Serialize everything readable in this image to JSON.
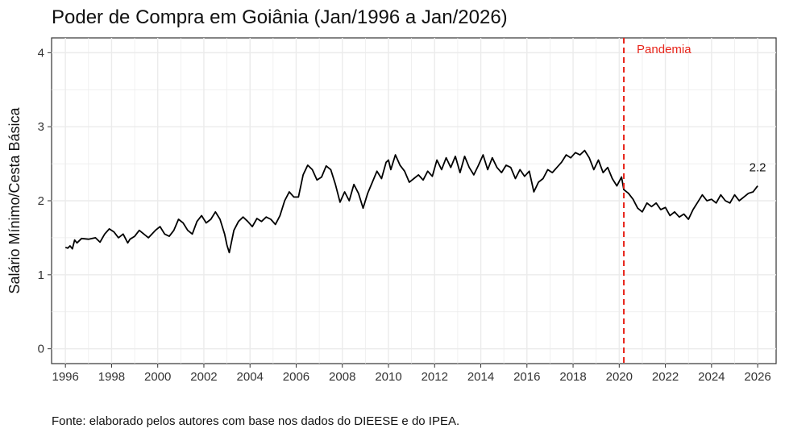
{
  "chart_data": {
    "type": "line",
    "title": "Poder de Compra em Goiânia (Jan/1996 a Jan/2026)",
    "xlabel": "",
    "ylabel": "Salário Mínimo/Cesta Básica",
    "xlim": [
      1995.4,
      2026.8
    ],
    "ylim": [
      -0.2,
      4.2
    ],
    "xticks": [
      "1996",
      "1998",
      "2000",
      "2002",
      "2004",
      "2006",
      "2008",
      "2010",
      "2012",
      "2014",
      "2016",
      "2018",
      "2020",
      "2022",
      "2024",
      "2026"
    ],
    "yticks": [
      "0",
      "1",
      "2",
      "3",
      "4"
    ],
    "grid": true,
    "colors": {
      "line": "#000000",
      "annotation": "#e8251b",
      "grid": "#ebebeb"
    },
    "annotations": [
      {
        "type": "vline",
        "x": 2020.2,
        "label": "Pandemia",
        "style": "dashed"
      },
      {
        "type": "point_label",
        "x": 2026.0,
        "y": 2.33,
        "label": "2.2"
      }
    ],
    "series": [
      {
        "name": "Salário Mínimo/Cesta Básica",
        "x": [
          1996.0,
          1996.1,
          1996.2,
          1996.3,
          1996.4,
          1996.5,
          1996.7,
          1997.0,
          1997.3,
          1997.5,
          1997.7,
          1997.9,
          1998.1,
          1998.3,
          1998.5,
          1998.7,
          1998.8,
          1999.0,
          1999.2,
          1999.4,
          1999.6,
          1999.9,
          2000.1,
          2000.3,
          2000.5,
          2000.7,
          2000.9,
          2001.1,
          2001.3,
          2001.5,
          2001.7,
          2001.9,
          2002.1,
          2002.3,
          2002.5,
          2002.7,
          2002.9,
          2003.0,
          2003.1,
          2003.3,
          2003.5,
          2003.7,
          2003.9,
          2004.1,
          2004.3,
          2004.5,
          2004.7,
          2004.9,
          2005.1,
          2005.3,
          2005.5,
          2005.7,
          2005.9,
          2006.1,
          2006.3,
          2006.5,
          2006.7,
          2006.9,
          2007.1,
          2007.3,
          2007.5,
          2007.7,
          2007.9,
          2008.1,
          2008.3,
          2008.5,
          2008.7,
          2008.9,
          2009.1,
          2009.3,
          2009.5,
          2009.7,
          2009.9,
          2010.0,
          2010.1,
          2010.3,
          2010.5,
          2010.7,
          2010.9,
          2011.1,
          2011.3,
          2011.5,
          2011.7,
          2011.9,
          2012.1,
          2012.3,
          2012.5,
          2012.7,
          2012.9,
          2013.1,
          2013.3,
          2013.5,
          2013.7,
          2013.9,
          2014.1,
          2014.3,
          2014.5,
          2014.7,
          2014.9,
          2015.1,
          2015.3,
          2015.5,
          2015.7,
          2015.9,
          2016.1,
          2016.3,
          2016.5,
          2016.7,
          2016.9,
          2017.1,
          2017.3,
          2017.5,
          2017.7,
          2017.9,
          2018.1,
          2018.3,
          2018.5,
          2018.7,
          2018.9,
          2019.1,
          2019.3,
          2019.5,
          2019.7,
          2019.9,
          2020.1,
          2020.2,
          2020.4,
          2020.6,
          2020.8,
          2021.0,
          2021.2,
          2021.4,
          2021.6,
          2021.8,
          2022.0,
          2022.2,
          2022.4,
          2022.6,
          2022.8,
          2023.0,
          2023.2,
          2023.4,
          2023.6,
          2023.8,
          2024.0,
          2024.2,
          2024.4,
          2024.6,
          2024.8,
          2025.0,
          2025.2,
          2025.4,
          2025.6,
          2025.8,
          2026.0
        ],
        "y": [
          1.37,
          1.36,
          1.39,
          1.35,
          1.47,
          1.43,
          1.49,
          1.48,
          1.5,
          1.44,
          1.55,
          1.62,
          1.58,
          1.5,
          1.55,
          1.43,
          1.48,
          1.52,
          1.6,
          1.55,
          1.5,
          1.6,
          1.65,
          1.55,
          1.52,
          1.6,
          1.75,
          1.7,
          1.6,
          1.55,
          1.72,
          1.8,
          1.7,
          1.75,
          1.85,
          1.75,
          1.55,
          1.4,
          1.3,
          1.6,
          1.72,
          1.78,
          1.72,
          1.65,
          1.76,
          1.72,
          1.78,
          1.75,
          1.68,
          1.8,
          2.0,
          2.12,
          2.05,
          2.05,
          2.35,
          2.48,
          2.42,
          2.28,
          2.32,
          2.47,
          2.42,
          2.22,
          1.98,
          2.12,
          2.0,
          2.22,
          2.1,
          1.9,
          2.1,
          2.25,
          2.4,
          2.3,
          2.52,
          2.55,
          2.42,
          2.62,
          2.48,
          2.4,
          2.25,
          2.3,
          2.35,
          2.28,
          2.4,
          2.33,
          2.55,
          2.42,
          2.58,
          2.45,
          2.6,
          2.38,
          2.6,
          2.45,
          2.35,
          2.48,
          2.62,
          2.42,
          2.58,
          2.45,
          2.38,
          2.48,
          2.45,
          2.3,
          2.42,
          2.33,
          2.4,
          2.12,
          2.25,
          2.3,
          2.42,
          2.38,
          2.45,
          2.52,
          2.62,
          2.58,
          2.65,
          2.62,
          2.68,
          2.58,
          2.42,
          2.55,
          2.38,
          2.45,
          2.3,
          2.2,
          2.32,
          2.15,
          2.1,
          2.02,
          1.9,
          1.85,
          1.97,
          1.92,
          1.97,
          1.88,
          1.91,
          1.8,
          1.85,
          1.78,
          1.82,
          1.75,
          1.88,
          1.98,
          2.08,
          2.0,
          2.02,
          1.97,
          2.08,
          2.0,
          1.97,
          2.08,
          2.0,
          2.05,
          2.1,
          2.12,
          2.2
        ]
      }
    ]
  },
  "caption": "Fonte: elaborado pelos autores com base nos dados do DIEESE e do IPEA."
}
